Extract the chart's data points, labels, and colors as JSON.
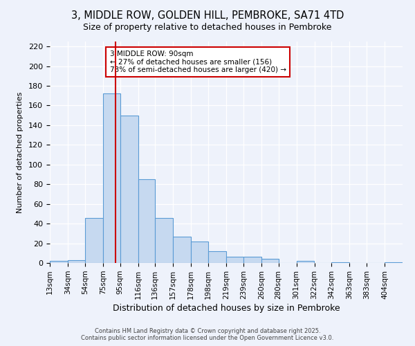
{
  "title": "3, MIDDLE ROW, GOLDEN HILL, PEMBROKE, SA71 4TD",
  "subtitle": "Size of property relative to detached houses in Pembroke",
  "xlabel": "Distribution of detached houses by size in Pembroke",
  "ylabel": "Number of detached properties",
  "footnote1": "Contains HM Land Registry data © Crown copyright and database right 2025.",
  "footnote2": "Contains public sector information licensed under the Open Government Licence v3.0.",
  "bar_edges": [
    13,
    34,
    54,
    75,
    95,
    116,
    136,
    157,
    178,
    198,
    219,
    239,
    260,
    280,
    301,
    322,
    342,
    363,
    383,
    404,
    425
  ],
  "bar_heights": [
    2,
    3,
    46,
    172,
    150,
    85,
    46,
    27,
    22,
    12,
    6,
    6,
    4,
    0,
    2,
    0,
    1,
    0,
    0,
    1
  ],
  "bar_color": "#c6d9f0",
  "bar_edge_color": "#5a9bd5",
  "vline_x": 90,
  "vline_color": "#cc0000",
  "ylim": [
    0,
    225
  ],
  "yticks": [
    0,
    20,
    40,
    60,
    80,
    100,
    120,
    140,
    160,
    180,
    200,
    220
  ],
  "annotation_title": "3 MIDDLE ROW: 90sqm",
  "annotation_line1": "← 27% of detached houses are smaller (156)",
  "annotation_line2": "73% of semi-detached houses are larger (420) →",
  "background_color": "#eef2fb",
  "plot_bg_color": "#eef2fb",
  "grid_color": "#ffffff",
  "tick_label_fontsize": 7.5,
  "title_fontsize": 10.5,
  "subtitle_fontsize": 9,
  "ylabel_fontsize": 8,
  "xlabel_fontsize": 9
}
